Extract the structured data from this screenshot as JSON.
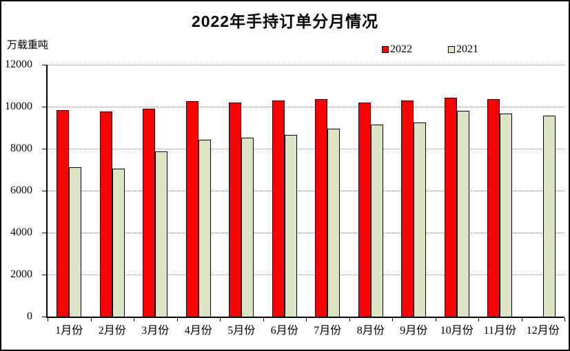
{
  "title": "2022年手持订单分月情况",
  "y_axis_unit": "万载重吨",
  "legend": {
    "items": [
      {
        "label": "2022",
        "color": "#FF0000"
      },
      {
        "label": "2021",
        "color": "#DCE5C3"
      }
    ]
  },
  "chart_data": {
    "type": "bar",
    "title": "2022年手持订单分月情况",
    "xlabel": "",
    "ylabel": "万载重吨",
    "categories": [
      "1月份",
      "2月份",
      "3月份",
      "4月份",
      "5月份",
      "6月份",
      "7月份",
      "8月份",
      "9月份",
      "10月份",
      "11月份",
      "12月份"
    ],
    "series": [
      {
        "name": "2022",
        "color": "#FF0000",
        "values": [
          9840,
          9780,
          9900,
          10250,
          10200,
          10280,
          10360,
          10200,
          10280,
          10440,
          10350,
          null
        ]
      },
      {
        "name": "2021",
        "color": "#DCE5C3",
        "values": [
          7110,
          7050,
          7860,
          8440,
          8520,
          8660,
          8950,
          9150,
          9240,
          9810,
          9670,
          9590
        ]
      }
    ],
    "ylim": [
      0,
      12000
    ],
    "yticks": [
      0,
      2000,
      4000,
      6000,
      8000,
      10000,
      12000
    ],
    "grid": "horizontal-dotted",
    "legend_position": "top-right",
    "bar_border_color": "#000000",
    "gridline_color": "#808080"
  }
}
